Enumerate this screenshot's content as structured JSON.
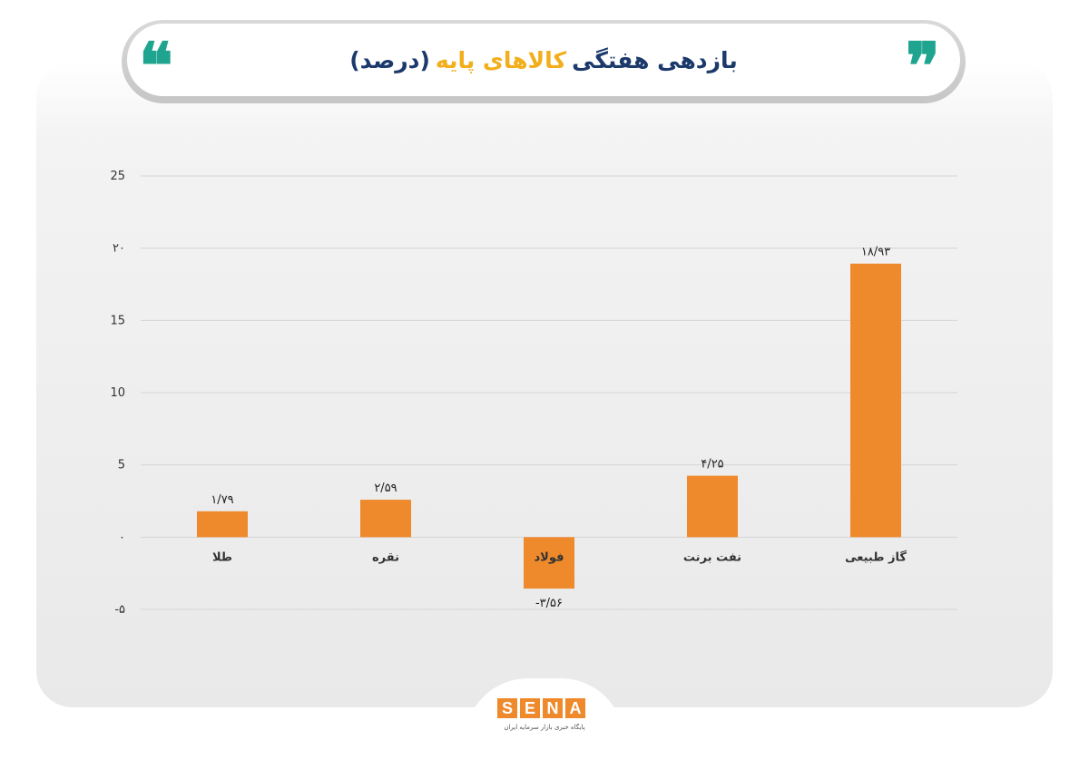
{
  "title": {
    "part1": "بازدهی هفتگی",
    "part2": "کالاهای پایه",
    "part3": "(درصد)"
  },
  "quotes": {
    "open": "❝",
    "close": "❞"
  },
  "colors": {
    "bar": "#ee8a2c",
    "accent_gold": "#f2ae1b",
    "accent_blue": "#1b3a6b",
    "quote": "#1fa58f"
  },
  "chart_data": {
    "type": "bar",
    "categories": [
      "طلا",
      "نقره",
      "فولاد",
      "نفت برنت",
      "گاز طبیعی"
    ],
    "values": [
      1.79,
      2.59,
      -3.56,
      4.25,
      18.93
    ],
    "value_labels": [
      "۱/۷۹",
      "۲/۵۹",
      "-۳/۵۶",
      "۴/۲۵",
      "۱۸/۹۳"
    ],
    "yticks": [
      -5,
      0,
      5,
      10,
      15,
      20,
      25
    ],
    "ytick_labels": [
      "-۵",
      "۰",
      "5",
      "10",
      "15",
      "۲۰",
      "25"
    ],
    "ylim": [
      -5,
      25
    ],
    "grid": true,
    "title": "بازدهی هفتگی کالاهای پایه (درصد)",
    "xlabel": "",
    "ylabel": ""
  },
  "logo": {
    "letters": [
      "S",
      "E",
      "N",
      "A"
    ],
    "subtitle": "پایگاه خبری بازار سرمایه ایران"
  }
}
